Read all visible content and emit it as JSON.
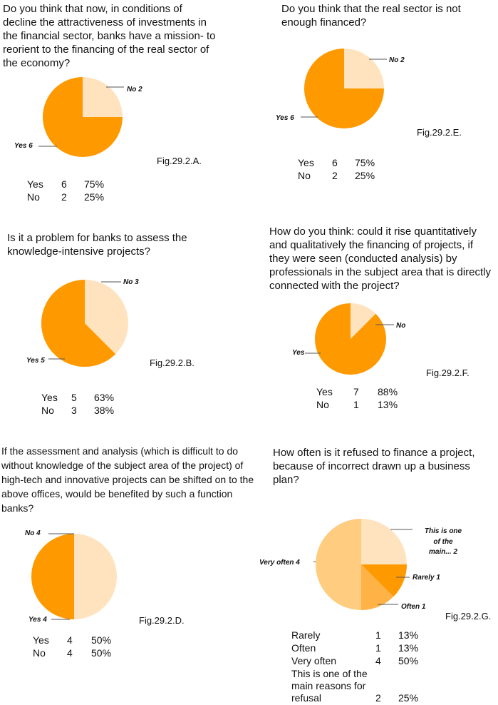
{
  "colors": {
    "orange": "#ff9900",
    "light": "#ffe3bf",
    "mid": "#ffb347",
    "pale": "#ffcc80",
    "line": "#555555"
  },
  "panels": {
    "A": {
      "question": "Do you think that now, in conditions of decline the attractiveness of investments in the financial sector, banks have a mission- to reorient to the financing of the real sector of the economy?",
      "fig": "Fig.29.2.A."
    },
    "E": {
      "question": "Do you think that the real sector is not enough financed?",
      "fig": "Fig.29.2.E."
    },
    "B": {
      "question": "Is it a problem for banks to assess the knowledge-intensive projects?",
      "fig": "Fig.29.2.B."
    },
    "F": {
      "question": "How do you think: could it rise quantitatively and qualitatively the financing of projects, if they were seen (conducted analysis) by professionals in the subject area that is directly connected with the project?",
      "fig": "Fig.29.2.F."
    },
    "D": {
      "question": "If the assessment and analysis (which is  difficult to do without knowledge of the subject area of the project) of high-tech and innovative projects can be shifted on to the above offices, would be benefited by such a function banks?",
      "fig": "Fig.29.2.D."
    },
    "G": {
      "question": "How often is it refused to finance a project, because of incorrect drawn up a business plan?",
      "fig": "Fig.29.2.G."
    }
  },
  "chart_data": [
    {
      "id": "A",
      "type": "pie",
      "labels": [
        "No 2",
        "Yes 6"
      ],
      "values": [
        2,
        6
      ],
      "table": [
        [
          "Yes",
          "6",
          "75%"
        ],
        [
          "No",
          "2",
          "25%"
        ]
      ]
    },
    {
      "id": "E",
      "type": "pie",
      "labels": [
        "No 2",
        "Yes 6"
      ],
      "values": [
        2,
        6
      ],
      "table": [
        [
          "Yes",
          "6",
          "75%"
        ],
        [
          "No",
          "2",
          "25%"
        ]
      ]
    },
    {
      "id": "B",
      "type": "pie",
      "labels": [
        "No 3",
        "Yes 5"
      ],
      "values": [
        3,
        5
      ],
      "table": [
        [
          "Yes",
          "5",
          "63%"
        ],
        [
          "No",
          "3",
          "38%"
        ]
      ]
    },
    {
      "id": "F",
      "type": "pie",
      "labels": [
        "No",
        "Yes"
      ],
      "values": [
        1,
        7
      ],
      "table": [
        [
          "Yes",
          "7",
          "88%"
        ],
        [
          "No",
          "1",
          "13%"
        ]
      ]
    },
    {
      "id": "D",
      "type": "pie",
      "labels": [
        "No 4",
        "Yes 4"
      ],
      "values": [
        4,
        4
      ],
      "table": [
        [
          "Yes",
          "4",
          "50%"
        ],
        [
          "No",
          "4",
          "50%"
        ]
      ]
    },
    {
      "id": "G",
      "type": "pie",
      "labels": [
        "This is one of the main... 2",
        "Rarely  1",
        "Often  1",
        "Very often  4"
      ],
      "values": [
        2,
        1,
        1,
        4
      ],
      "table": [
        [
          "Rarely",
          "1",
          "13%"
        ],
        [
          "Often",
          "1",
          "13%"
        ],
        [
          "Very often",
          "4",
          "50%"
        ],
        [
          "This is one of the main reasons for refusal",
          "2",
          "25%"
        ]
      ]
    }
  ]
}
